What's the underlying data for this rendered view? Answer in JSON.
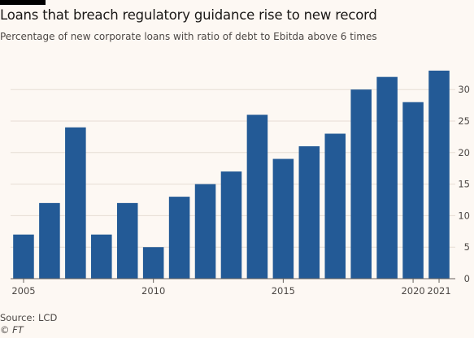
{
  "header": {
    "title": "Loans that breach regulatory guidance rise to new record",
    "subtitle": "Percentage of new corporate loans with ratio of debt to Ebitda above 6 times"
  },
  "footer": {
    "source": "Source: LCD",
    "credit": "© FT"
  },
  "chart_data": {
    "type": "bar",
    "categories": [
      "2005",
      "2006",
      "2007",
      "2008",
      "2009",
      "2010",
      "2011",
      "2012",
      "2013",
      "2014",
      "2015",
      "2016",
      "2017",
      "2018",
      "2019",
      "2020",
      "2021"
    ],
    "values": [
      7,
      12,
      24,
      7,
      12,
      5,
      13,
      15,
      17,
      26,
      19,
      21,
      23,
      30,
      32,
      28,
      33
    ],
    "x_tick_labels": [
      "2005",
      "2010",
      "2015",
      "2020",
      "2021"
    ],
    "y_ticks": [
      0,
      5,
      10,
      15,
      20,
      25,
      30
    ],
    "ylim": [
      0,
      34
    ],
    "y_axis_position": "right",
    "grid": true,
    "colors": {
      "bar": "#235a96",
      "grid": "#e6ddd4",
      "axis": "#66605c"
    }
  }
}
